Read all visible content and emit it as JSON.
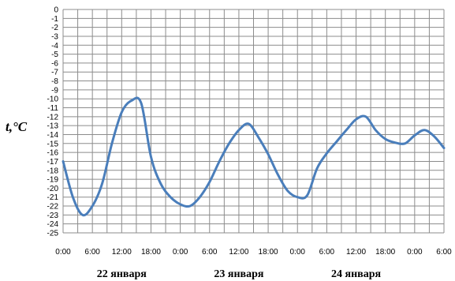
{
  "chart_data": {
    "type": "line",
    "ylabel": "t,°C",
    "ylim": [
      -25,
      0
    ],
    "y_ticks": [
      "0",
      "-1",
      "-2",
      "-3",
      "-4",
      "-5",
      "-6",
      "-7",
      "-8",
      "-9",
      "-10",
      "-11",
      "-12",
      "-13",
      "-14",
      "-15",
      "-16",
      "-17",
      "-18",
      "-19",
      "-20",
      "-21",
      "-22",
      "-23",
      "-24",
      "-25"
    ],
    "x_tick_labels": [
      "0:00",
      "6:00",
      "12:00",
      "18:00",
      "0:00",
      "6:00",
      "12:00",
      "18:00",
      "0:00",
      "6:00",
      "12:00",
      "18:00",
      "0:00",
      "6:00"
    ],
    "x_range_hours": [
      0,
      78
    ],
    "day_labels": [
      "22 января",
      "23 января",
      "24 января"
    ],
    "grid": true,
    "color": "#4a7ebb",
    "series": [
      {
        "x": [
          0,
          2,
          4,
          6,
          8,
          10,
          12,
          14,
          16,
          18,
          20,
          22,
          24,
          26,
          28,
          30,
          32,
          34,
          36,
          38,
          40,
          42,
          44,
          46,
          48,
          50,
          52,
          54,
          56,
          58,
          60,
          62,
          64,
          66,
          68,
          70,
          72,
          74,
          76,
          78
        ],
        "y": [
          -17,
          -21,
          -23,
          -22,
          -19.5,
          -15,
          -11.5,
          -10.2,
          -10.5,
          -16.5,
          -19.5,
          -21,
          -21.8,
          -22,
          -21,
          -19.3,
          -17,
          -15,
          -13.5,
          -12.8,
          -14.3,
          -16.2,
          -18.5,
          -20.3,
          -21,
          -20.8,
          -17.8,
          -16.1,
          -14.8,
          -13.5,
          -12.3,
          -12,
          -13.5,
          -14.5,
          -14.9,
          -15,
          -14.1,
          -13.5,
          -14.2,
          -15.5
        ]
      }
    ]
  }
}
